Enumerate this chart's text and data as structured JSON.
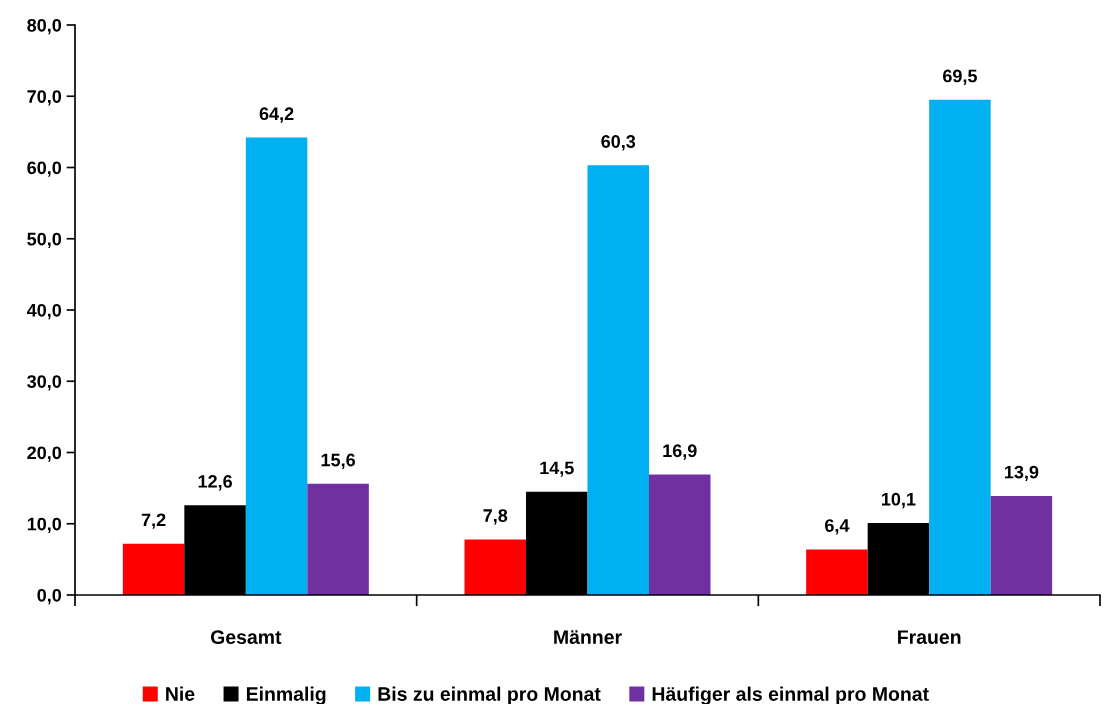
{
  "chart_data": {
    "type": "bar",
    "categories": [
      "Gesamt",
      "Männer",
      "Frauen"
    ],
    "series": [
      {
        "name": "Nie",
        "color": "#ff0000",
        "values": [
          7.2,
          7.8,
          6.4
        ],
        "value_labels": [
          "7,2",
          "7,8",
          "6,4"
        ]
      },
      {
        "name": "Einmalig",
        "color": "#000000",
        "values": [
          12.6,
          14.5,
          10.1
        ],
        "value_labels": [
          "12,6",
          "14,5",
          "10,1"
        ]
      },
      {
        "name": "Bis zu einmal pro Monat",
        "color": "#00b0f0",
        "values": [
          64.2,
          60.3,
          69.5
        ],
        "value_labels": [
          "64,2",
          "60,3",
          "69,5"
        ]
      },
      {
        "name": "Häufiger als einmal pro Monat",
        "color": "#7030a0",
        "values": [
          15.6,
          16.9,
          13.9
        ],
        "value_labels": [
          "15,6",
          "16,9",
          "13,9"
        ]
      }
    ],
    "ylim": [
      0,
      80
    ],
    "yticks": [
      {
        "value": 0,
        "label": "0,0"
      },
      {
        "value": 10,
        "label": "10,0"
      },
      {
        "value": 20,
        "label": "20,0"
      },
      {
        "value": 30,
        "label": "30,0"
      },
      {
        "value": 40,
        "label": "40,0"
      },
      {
        "value": 50,
        "label": "50,0"
      },
      {
        "value": 60,
        "label": "60,0"
      },
      {
        "value": 70,
        "label": "70,0"
      },
      {
        "value": 80,
        "label": "80,0"
      }
    ],
    "grid": false,
    "legend": "bottom"
  }
}
